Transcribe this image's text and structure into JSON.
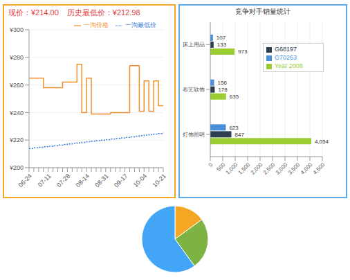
{
  "chart_data": [
    {
      "type": "line",
      "title": "现价：¥214.00",
      "subtitle": "历史最低价：¥212.98",
      "categories": [
        "06-24",
        null,
        null,
        null,
        "07-11",
        null,
        null,
        null,
        "07-28",
        null,
        null,
        null,
        "08-14",
        null,
        null,
        null,
        "08-31",
        null,
        null,
        null,
        "09-17",
        null,
        null,
        null,
        "10-04",
        null,
        null,
        null,
        "10-21"
      ],
      "series": [
        {
          "name": "一淘价格",
          "color": "#f0902c",
          "line_style": "solid",
          "values": [
            265,
            265,
            265,
            258,
            258,
            258,
            258,
            262,
            262,
            262,
            275,
            240,
            265,
            239,
            239,
            239,
            239,
            240,
            240,
            240,
            240,
            274,
            274,
            241,
            263,
            241,
            263,
            245,
            245
          ]
        },
        {
          "name": "一淘最低价",
          "color": "#3a7bd5",
          "line_style": "dotted",
          "values": [
            214,
            214.4,
            214.8,
            215.2,
            215.6,
            216,
            216.4,
            216.8,
            217.2,
            217.6,
            218,
            218.4,
            218.8,
            219.2,
            219.6,
            220,
            220.4,
            220.8,
            221.2,
            221.6,
            222,
            222.4,
            222.8,
            223.2,
            223.6,
            224,
            224.4,
            224.8,
            225.2
          ]
        }
      ],
      "ylim": [
        200,
        300
      ],
      "yticks": [
        {
          "value": 200,
          "label": "¥200"
        },
        {
          "value": 220,
          "label": "¥220"
        },
        {
          "value": 240,
          "label": "¥240"
        },
        {
          "value": 260,
          "label": "¥260"
        },
        {
          "value": 280,
          "label": "¥280"
        },
        {
          "value": 300,
          "label": "¥300"
        }
      ],
      "grid": true,
      "legend": "upper right"
    },
    {
      "type": "bar",
      "orientation": "horizontal",
      "title": "竞争对手销量统计",
      "categories": [
        "床上用品",
        "布艺软饰",
        "灯饰照明"
      ],
      "series": [
        {
          "name": "G70263",
          "color": "#4a90d9",
          "values": [
            107,
            156,
            623
          ],
          "value_labels": [
            "107",
            "156",
            "623"
          ]
        },
        {
          "name": "G68197",
          "color": "#2c3e50",
          "values": [
            133,
            178,
            847
          ],
          "value_labels": [
            "133",
            "178",
            "847"
          ]
        },
        {
          "name": "Year 2008",
          "color": "#9acd32",
          "values": [
            973,
            635,
            4054
          ],
          "value_labels": [
            "973",
            "635",
            "4,054"
          ]
        }
      ],
      "xlim": [
        0,
        4500
      ],
      "xticks": [
        0,
        500,
        {
          "value": 1000,
          "label": "1,000"
        },
        {
          "value": 1500,
          "label": "1,500"
        },
        {
          "value": 2000,
          "label": "2,000"
        },
        {
          "value": 2500,
          "label": "2,500"
        },
        {
          "value": 3000,
          "label": "3,000"
        },
        {
          "value": 3500,
          "label": "3,500"
        },
        {
          "value": 4000,
          "label": "4,000"
        },
        {
          "value": 4500,
          "label": "4,500"
        }
      ],
      "grid": true,
      "data_labels": true,
      "legend": "upper right"
    },
    {
      "type": "pie",
      "values": [
        15,
        25,
        60
      ],
      "colors": [
        "#f5a623",
        "#7cb342",
        "#42a5f5"
      ]
    }
  ]
}
